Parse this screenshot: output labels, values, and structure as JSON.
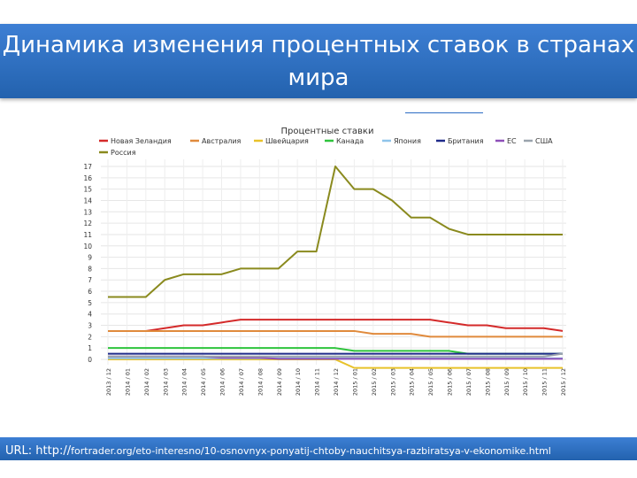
{
  "slide": {
    "title": "Динамика изменения процентных ставок в странах мира",
    "url_prefix": "URL: http://",
    "url_link": "fortrader.org/eto-interesno/10-osnovnyx-ponyatij-chtoby-nauchitsya-razbiratsya-v-ekonomike.html"
  },
  "chart_data": {
    "type": "line",
    "title": "Процентные ставки",
    "xlabel": "",
    "ylabel": "",
    "ylim": [
      0,
      17
    ],
    "yticks": [
      0,
      1,
      2,
      3,
      4,
      5,
      6,
      7,
      8,
      9,
      10,
      11,
      12,
      13,
      14,
      15,
      16,
      17
    ],
    "grid": true,
    "legend_position": "top",
    "categories": [
      "2013 / 12",
      "2014 / 01",
      "2014 / 02",
      "2014 / 03",
      "2014 / 04",
      "2014 / 05",
      "2014 / 06",
      "2014 / 07",
      "2014 / 08",
      "2014 / 09",
      "2014 / 10",
      "2014 / 11",
      "2014 / 12",
      "2015 / 01",
      "2015 / 02",
      "2015 / 03",
      "2015 / 04",
      "2015 / 05",
      "2015 / 06",
      "2015 / 07",
      "2015 / 08",
      "2015 / 09",
      "2015 / 10",
      "2015 / 11",
      "2015 / 12"
    ],
    "series": [
      {
        "name": "Новая Зеландия",
        "color": "#d42a2a",
        "x": [
          0,
          1,
          2,
          3,
          4,
          5,
          6,
          7,
          8,
          9,
          10,
          11,
          12,
          13,
          14,
          15,
          16,
          17,
          18,
          19,
          20,
          21,
          22,
          23,
          24
        ],
        "values": [
          2.5,
          2.5,
          2.5,
          2.75,
          3,
          3,
          3.25,
          3.5,
          3.5,
          3.5,
          3.5,
          3.5,
          3.5,
          3.5,
          3.5,
          3.5,
          3.5,
          3.5,
          3.25,
          3,
          3,
          2.75,
          2.75,
          2.75,
          2.5
        ]
      },
      {
        "name": "Австралия",
        "color": "#e08a3c",
        "x": [
          0,
          1,
          2,
          3,
          4,
          5,
          6,
          7,
          8,
          9,
          10,
          11,
          12,
          13,
          14,
          15,
          16,
          17,
          18,
          19,
          20,
          21,
          22,
          23,
          24
        ],
        "values": [
          2.5,
          2.5,
          2.5,
          2.5,
          2.5,
          2.5,
          2.5,
          2.5,
          2.5,
          2.5,
          2.5,
          2.5,
          2.5,
          2.5,
          2.25,
          2.25,
          2.25,
          2,
          2,
          2,
          2,
          2,
          2,
          2,
          2
        ]
      },
      {
        "name": "Швейцария",
        "color": "#e8c22a",
        "x": [
          0,
          1,
          2,
          3,
          4,
          5,
          6,
          7,
          8,
          9,
          10,
          11,
          12,
          13,
          14,
          15,
          16,
          17,
          18,
          19,
          20,
          21,
          22,
          23,
          24
        ],
        "values": [
          0,
          0,
          0,
          0,
          0,
          0,
          0,
          0,
          0,
          0,
          0,
          0,
          0,
          -0.75,
          -0.75,
          -0.75,
          -0.75,
          -0.75,
          -0.75,
          -0.75,
          -0.75,
          -0.75,
          -0.75,
          -0.75,
          -0.75
        ]
      },
      {
        "name": "Канада",
        "color": "#2ec43c",
        "x": [
          0,
          1,
          2,
          3,
          4,
          5,
          6,
          7,
          8,
          9,
          10,
          11,
          12,
          13,
          14,
          15,
          16,
          17,
          18,
          19,
          20,
          21,
          22,
          23,
          24
        ],
        "values": [
          1,
          1,
          1,
          1,
          1,
          1,
          1,
          1,
          1,
          1,
          1,
          1,
          1,
          0.75,
          0.75,
          0.75,
          0.75,
          0.75,
          0.75,
          0.5,
          0.5,
          0.5,
          0.5,
          0.5,
          0.5
        ]
      },
      {
        "name": "Япония",
        "color": "#8fc4ea",
        "x": [
          0,
          1,
          2,
          3,
          4,
          5,
          6,
          7,
          8,
          9,
          10,
          11,
          12,
          13,
          14,
          15,
          16,
          17,
          18,
          19,
          20,
          21,
          22,
          23,
          24
        ],
        "values": [
          0.1,
          0.1,
          0.1,
          0.1,
          0.1,
          0.1,
          0.1,
          0.1,
          0.1,
          0.1,
          0.1,
          0.1,
          0.1,
          0.1,
          0.1,
          0.1,
          0.1,
          0.1,
          0.1,
          0.1,
          0.1,
          0.1,
          0.1,
          0.1,
          0.1
        ]
      },
      {
        "name": "Британия",
        "color": "#1f2a8a",
        "x": [
          0,
          1,
          2,
          3,
          4,
          5,
          6,
          7,
          8,
          9,
          10,
          11,
          12,
          13,
          14,
          15,
          16,
          17,
          18,
          19,
          20,
          21,
          22,
          23,
          24
        ],
        "values": [
          0.5,
          0.5,
          0.5,
          0.5,
          0.5,
          0.5,
          0.5,
          0.5,
          0.5,
          0.5,
          0.5,
          0.5,
          0.5,
          0.5,
          0.5,
          0.5,
          0.5,
          0.5,
          0.5,
          0.5,
          0.5,
          0.5,
          0.5,
          0.5,
          0.5
        ]
      },
      {
        "name": "ЕС",
        "color": "#8e4fb8",
        "x": [
          0,
          1,
          2,
          3,
          4,
          5,
          6,
          7,
          8,
          9,
          10,
          11,
          12,
          13,
          14,
          15,
          16,
          17,
          18,
          19,
          20,
          21,
          22,
          23,
          24
        ],
        "values": [
          0.25,
          0.25,
          0.25,
          0.25,
          0.25,
          0.25,
          0.15,
          0.15,
          0.15,
          0.05,
          0.05,
          0.05,
          0.05,
          0.05,
          0.05,
          0.05,
          0.05,
          0.05,
          0.05,
          0.05,
          0.05,
          0.05,
          0.05,
          0.05,
          0.05
        ]
      },
      {
        "name": "США",
        "color": "#9aa3ad",
        "x": [
          0,
          1,
          2,
          3,
          4,
          5,
          6,
          7,
          8,
          9,
          10,
          11,
          12,
          13,
          14,
          15,
          16,
          17,
          18,
          19,
          20,
          21,
          22,
          23,
          24
        ],
        "values": [
          0.25,
          0.25,
          0.25,
          0.25,
          0.25,
          0.25,
          0.25,
          0.25,
          0.25,
          0.25,
          0.25,
          0.25,
          0.25,
          0.25,
          0.25,
          0.25,
          0.25,
          0.25,
          0.25,
          0.25,
          0.25,
          0.25,
          0.25,
          0.25,
          0.5
        ]
      },
      {
        "name": "Россия",
        "color": "#8a8a1e",
        "x": [
          0,
          1,
          2,
          3,
          4,
          5,
          6,
          7,
          8,
          9,
          10,
          11,
          12,
          13,
          14,
          15,
          16,
          17,
          18,
          19,
          20,
          21,
          22,
          23,
          24
        ],
        "values": [
          5.5,
          5.5,
          5.5,
          7,
          7.5,
          7.5,
          7.5,
          8,
          8,
          8,
          9.5,
          9.5,
          17,
          15,
          15,
          14,
          12.5,
          12.5,
          11.5,
          11,
          11,
          11,
          11,
          11,
          11
        ]
      }
    ]
  }
}
